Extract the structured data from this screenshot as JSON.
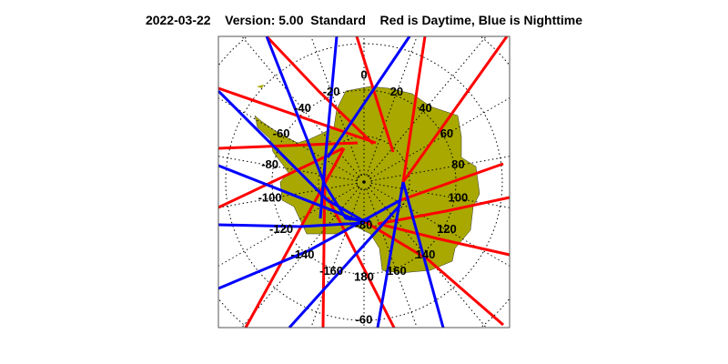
{
  "header": {
    "date": "2022-03-22",
    "version": "Version: 5.00",
    "mode": "Standard",
    "legend_text": "Red is Daytime, Blue is Nighttime"
  },
  "map": {
    "projection": "south polar stereographic",
    "region": "Antarctica",
    "colors": {
      "land": "#a8a800",
      "day_track": "#ff0000",
      "night_track": "#0000ff",
      "grid": "#000000"
    },
    "longitude_labels": [
      "0",
      "20",
      "40",
      "60",
      "80",
      "100",
      "120",
      "140",
      "160",
      "180",
      "-160",
      "-140",
      "-120",
      "-100",
      "-80",
      "-60",
      "-40",
      "-20"
    ],
    "latitude_labels": [
      "-80",
      "-60"
    ]
  }
}
